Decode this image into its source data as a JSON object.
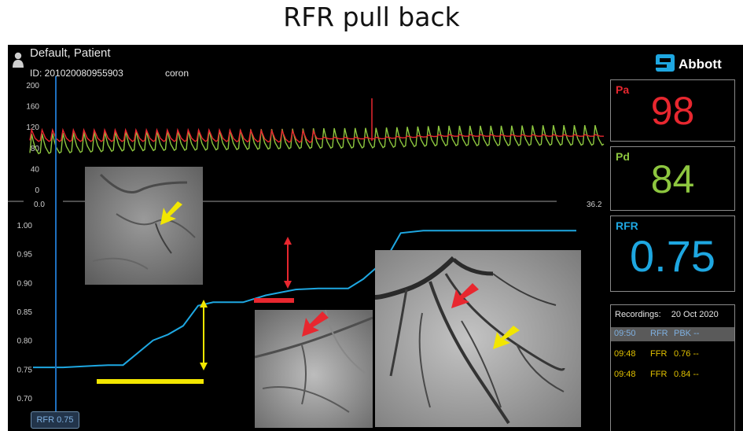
{
  "title": "RFR pull back",
  "patient": {
    "name": "Default, Patient",
    "id": "ID: 201020080955903",
    "procedure": "coron"
  },
  "brand": "Abbott",
  "top_chart": {
    "y_ticks": [
      "200",
      "160",
      "120",
      "80",
      "40",
      "0"
    ],
    "x_start": "0.0",
    "x_end": "36.2"
  },
  "bottom_chart": {
    "y_ticks": [
      "1.00",
      "0.95",
      "0.90",
      "0.85",
      "0.80",
      "0.75",
      "0.70"
    ]
  },
  "panels": {
    "pa": {
      "label": "Pa",
      "value": "98",
      "color": "#e8272f"
    },
    "pd": {
      "label": "Pd",
      "value": "84",
      "color": "#8dc63f"
    },
    "rfr": {
      "label": "RFR",
      "value": "0.75",
      "color": "#1ea7e1"
    }
  },
  "recordings": {
    "header_label": "Recordings:",
    "header_date": "20 Oct 2020",
    "rows": [
      {
        "time": "09:50",
        "type": "RFR",
        "value": "PBK --",
        "color": "#7fb0e0",
        "selected": true
      },
      {
        "time": "09:48",
        "type": "FFR",
        "value": "0.76 --",
        "color": "#e0c000",
        "selected": false
      },
      {
        "time": "09:48",
        "type": "FFR",
        "value": "0.84 --",
        "color": "#e0c000",
        "selected": false
      }
    ]
  },
  "badge": "RFR 0.75",
  "chart_data": {
    "type": "line",
    "title": "",
    "x_range": [
      0.0,
      36.2
    ],
    "pressure_ylim": [
      0,
      200
    ],
    "ratio_ylim": [
      0.7,
      1.0
    ],
    "series": [
      {
        "name": "Pa",
        "color": "#e8272f",
        "x": [
          0,
          6,
          12,
          18,
          22,
          26,
          30,
          33,
          36.2
        ],
        "values": [
          100,
          100,
          100,
          98,
          98,
          103,
          103,
          103,
          103
        ]
      },
      {
        "name": "Pd",
        "color": "#8dc63f",
        "x": [
          0,
          6,
          12,
          18,
          22,
          26,
          30,
          33,
          36.2
        ],
        "values": [
          84,
          90,
          92,
          95,
          96,
          100,
          100,
          101,
          101
        ]
      },
      {
        "name": "RFR",
        "color": "#1ea7e1",
        "x": [
          0,
          2.0,
          5.0,
          6.0,
          8.0,
          9.0,
          10.0,
          11.0,
          12.0,
          14.0,
          15.5,
          17.5,
          19.0,
          21.0,
          22.0,
          23.5,
          24.5,
          26.0,
          36.2
        ],
        "values": [
          0.753,
          0.753,
          0.757,
          0.757,
          0.8,
          0.81,
          0.825,
          0.86,
          0.866,
          0.866,
          0.878,
          0.888,
          0.89,
          0.89,
          0.906,
          0.94,
          0.986,
          0.99,
          0.99
        ]
      }
    ],
    "grid": false,
    "legend": "none"
  }
}
